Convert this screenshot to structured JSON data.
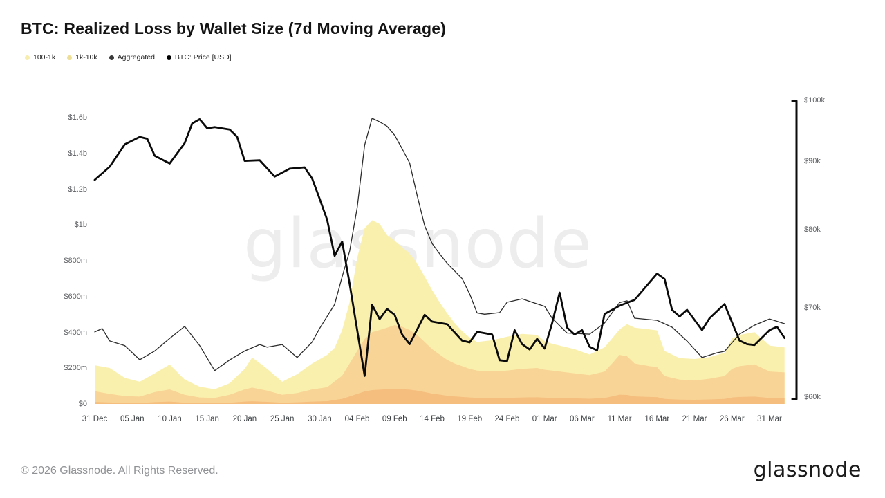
{
  "title": "BTC: Realized Loss by Wallet Size (7d Moving Average)",
  "watermark": "glassnode",
  "footer": {
    "copyright": "© 2026 Glassnode. All Rights Reserved.",
    "logo_text": "glassnode"
  },
  "legend": [
    {
      "label": "100-1k",
      "color": "#f7eeae"
    },
    {
      "label": "1k-10k",
      "color": "#eedf96"
    },
    {
      "label": "Aggregated",
      "color": "#3a3a3a"
    },
    {
      "label": "BTC: Price [USD]",
      "color": "#000000"
    }
  ],
  "chart_data": {
    "type": "area",
    "title": "BTC: Realized Loss by Wallet Size (7d Moving Average)",
    "x_unit": "days since 31 Dec",
    "x_tick_days": [
      0,
      5,
      10,
      15,
      20,
      25,
      30,
      35,
      40,
      45,
      50,
      55,
      60,
      65,
      70,
      75,
      80,
      85,
      90
    ],
    "x_tick_labels": [
      "31 Dec",
      "05 Jan",
      "10 Jan",
      "15 Jan",
      "20 Jan",
      "25 Jan",
      "30 Jan",
      "04 Feb",
      "09 Feb",
      "14 Feb",
      "19 Feb",
      "24 Feb",
      "01 Mar",
      "06 Mar",
      "11 Mar",
      "16 Mar",
      "21 Mar",
      "26 Mar",
      "31 Mar"
    ],
    "left_axis": {
      "unit": "USD realized loss",
      "tick_values_m": [
        0,
        200,
        400,
        600,
        800,
        1000,
        1200,
        1400,
        1600
      ],
      "tick_labels": [
        "$0",
        "$200m",
        "$400m",
        "$600m",
        "$800m",
        "$1b",
        "$1.2b",
        "$1.4b",
        "$1.6b"
      ],
      "range_m": [
        0,
        1710
      ]
    },
    "right_axis": {
      "unit": "BTC price USD",
      "scale": "log",
      "tick_values_k": [
        100,
        90,
        80,
        70,
        60
      ],
      "tick_labels": [
        "$100k",
        "$90k",
        "$80k",
        "$70k",
        "$60k"
      ],
      "range_k": [
        60,
        100
      ]
    },
    "stacking": "1k-10k at bottom, 100-1k stacked on top",
    "area_days": [
      0,
      2,
      4,
      6,
      8,
      10,
      12,
      14,
      16,
      18,
      20,
      21,
      23,
      25,
      27,
      29,
      31,
      32,
      33,
      34,
      35,
      36,
      37,
      38,
      39,
      40,
      41,
      42,
      43,
      44,
      45,
      46,
      47,
      48,
      49,
      50,
      51,
      53,
      55,
      57,
      59,
      60,
      61,
      62,
      64,
      66,
      68,
      69,
      70,
      71,
      72,
      74,
      75,
      76,
      78,
      80,
      82,
      84,
      85,
      86,
      88,
      90,
      92
    ],
    "series": [
      {
        "name": "1k-10k",
        "type": "area",
        "axis": "left",
        "color": "#f8d496",
        "edge_color": "#f5be7e",
        "values_m": [
          75,
          60,
          48,
          45,
          70,
          85,
          55,
          40,
          38,
          55,
          85,
          95,
          78,
          55,
          65,
          85,
          97,
          130,
          162,
          230,
          300,
          367,
          405,
          417,
          430,
          444,
          435,
          417,
          390,
          350,
          310,
          280,
          250,
          230,
          215,
          200,
          190,
          185,
          190,
          200,
          205,
          195,
          190,
          185,
          175,
          165,
          185,
          230,
          278,
          270,
          230,
          215,
          210,
          160,
          140,
          135,
          145,
          160,
          200,
          215,
          225,
          185,
          180
        ]
      },
      {
        "name": "100-1k",
        "type": "area",
        "axis": "left",
        "color": "#faf0ad",
        "values_m": [
          145,
          145,
          102,
          83,
          105,
          139,
          85,
          60,
          48,
          65,
          115,
          169,
          122,
          73,
          105,
          145,
          181,
          187,
          255,
          342,
          519,
          619,
          625,
          593,
          517,
          472,
          445,
          426,
          400,
          365,
          330,
          292,
          260,
          226,
          195,
          175,
          160,
          175,
          190,
          195,
          185,
          160,
          150,
          145,
          135,
          115,
          135,
          140,
          142,
          180,
          200,
          205,
          205,
          140,
          120,
          120,
          120,
          130,
          170,
          175,
          180,
          145,
          140
        ]
      },
      {
        "name": "Aggregated",
        "type": "line",
        "axis": "left",
        "color": "#2b2b2b",
        "width": 1.3,
        "points_day_m": [
          [
            0,
            406
          ],
          [
            1,
            425
          ],
          [
            2,
            356
          ],
          [
            4,
            330
          ],
          [
            6,
            251
          ],
          [
            8,
            300
          ],
          [
            10,
            370
          ],
          [
            12,
            437
          ],
          [
            14,
            330
          ],
          [
            16,
            190
          ],
          [
            18,
            250
          ],
          [
            20,
            300
          ],
          [
            22,
            336
          ],
          [
            23,
            321
          ],
          [
            25,
            336
          ],
          [
            27,
            263
          ],
          [
            29,
            350
          ],
          [
            30,
            426
          ],
          [
            32,
            560
          ],
          [
            33,
            715
          ],
          [
            34,
            858
          ],
          [
            35,
            1100
          ],
          [
            36,
            1450
          ],
          [
            37,
            1600
          ],
          [
            38,
            1580
          ],
          [
            39,
            1555
          ],
          [
            40,
            1505
          ],
          [
            41,
            1430
          ],
          [
            42,
            1350
          ],
          [
            43,
            1170
          ],
          [
            44,
            1000
          ],
          [
            45,
            900
          ],
          [
            46,
            843
          ],
          [
            47,
            790
          ],
          [
            49,
            704
          ],
          [
            50,
            619
          ],
          [
            51,
            512
          ],
          [
            52,
            505
          ],
          [
            54,
            514
          ],
          [
            55,
            572
          ],
          [
            57,
            591
          ],
          [
            60,
            549
          ],
          [
            61,
            483
          ],
          [
            63,
            400
          ],
          [
            66,
            394
          ],
          [
            68,
            456
          ],
          [
            70,
            570
          ],
          [
            71,
            580
          ],
          [
            72,
            483
          ],
          [
            75,
            471
          ],
          [
            77,
            433
          ],
          [
            79,
            355
          ],
          [
            81,
            263
          ],
          [
            83,
            290
          ],
          [
            84,
            298
          ],
          [
            86,
            394
          ],
          [
            88,
            444
          ],
          [
            90,
            479
          ],
          [
            92,
            452
          ]
        ]
      },
      {
        "name": "BTC: Price [USD]",
        "type": "line",
        "axis": "right",
        "color": "#0a0a0a",
        "width": 2.8,
        "points_day_k": [
          [
            0,
            87.3
          ],
          [
            2,
            89.3
          ],
          [
            4,
            92.8
          ],
          [
            6,
            94.0
          ],
          [
            7,
            93.7
          ],
          [
            8,
            91.0
          ],
          [
            10,
            89.8
          ],
          [
            12,
            93.0
          ],
          [
            13,
            96.2
          ],
          [
            14,
            96.9
          ],
          [
            15,
            95.4
          ],
          [
            16,
            95.6
          ],
          [
            18,
            95.2
          ],
          [
            19,
            94.0
          ],
          [
            20,
            90.2
          ],
          [
            22,
            90.3
          ],
          [
            24,
            87.8
          ],
          [
            26,
            89.0
          ],
          [
            28,
            89.2
          ],
          [
            29,
            87.5
          ],
          [
            30,
            84.5
          ],
          [
            31,
            81.5
          ],
          [
            32,
            76.6
          ],
          [
            33,
            78.5
          ],
          [
            34,
            73.0
          ],
          [
            36,
            62.3
          ],
          [
            37,
            70.4
          ],
          [
            38,
            68.7
          ],
          [
            39,
            69.9
          ],
          [
            40,
            69.2
          ],
          [
            41,
            66.9
          ],
          [
            42,
            65.8
          ],
          [
            44,
            69.2
          ],
          [
            45,
            68.4
          ],
          [
            47,
            68.1
          ],
          [
            49,
            66.2
          ],
          [
            50,
            66.0
          ],
          [
            51,
            67.2
          ],
          [
            53,
            66.9
          ],
          [
            54,
            64.0
          ],
          [
            55,
            63.9
          ],
          [
            56,
            67.4
          ],
          [
            57,
            65.8
          ],
          [
            58,
            65.2
          ],
          [
            59,
            66.4
          ],
          [
            60,
            65.3
          ],
          [
            61,
            68.2
          ],
          [
            62,
            71.9
          ],
          [
            63,
            67.7
          ],
          [
            64,
            66.9
          ],
          [
            65,
            67.4
          ],
          [
            66,
            65.5
          ],
          [
            67,
            65.1
          ],
          [
            68,
            69.3
          ],
          [
            70,
            70.3
          ],
          [
            72,
            71.0
          ],
          [
            75,
            74.3
          ],
          [
            76,
            73.6
          ],
          [
            77,
            69.8
          ],
          [
            78,
            69.0
          ],
          [
            79,
            69.8
          ],
          [
            81,
            67.4
          ],
          [
            82,
            68.8
          ],
          [
            84,
            70.5
          ],
          [
            86,
            66.2
          ],
          [
            87,
            65.8
          ],
          [
            88,
            65.7
          ],
          [
            90,
            67.4
          ],
          [
            91,
            67.8
          ],
          [
            92,
            66.5
          ]
        ]
      }
    ]
  }
}
